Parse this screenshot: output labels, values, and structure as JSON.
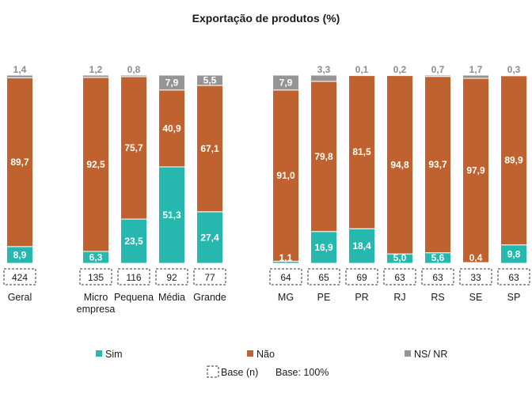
{
  "chart_data": {
    "type": "bar",
    "stacked": true,
    "title": "Exportação de produtos (%)",
    "categories": [
      "Geral",
      "Micro empresa",
      "Pequena",
      "Média",
      "Grande",
      "MG",
      "PE",
      "PR",
      "RJ",
      "RS",
      "SE",
      "SP"
    ],
    "category_lines": [
      [
        "Geral"
      ],
      [
        "Micro",
        "empresa"
      ],
      [
        "Pequena"
      ],
      [
        "Média"
      ],
      [
        "Grande"
      ],
      [
        "MG"
      ],
      [
        "PE"
      ],
      [
        "PR"
      ],
      [
        "RJ"
      ],
      [
        "RS"
      ],
      [
        "SE"
      ],
      [
        "SP"
      ]
    ],
    "series": [
      {
        "name": "Sim",
        "color": "#26b8ae",
        "values": [
          8.9,
          6.3,
          23.5,
          51.3,
          27.4,
          1.1,
          16.9,
          18.4,
          5.0,
          5.6,
          0.4,
          9.8
        ],
        "labels": [
          "8,9",
          "6,3",
          "23,5",
          "51,3",
          "27,4",
          "1,1",
          "16,9",
          "18,4",
          "5,0",
          "5,6",
          "0,4",
          "9,8"
        ]
      },
      {
        "name": "Não",
        "color": "#c0622f",
        "values": [
          89.7,
          92.5,
          75.7,
          40.9,
          67.1,
          91.0,
          79.8,
          81.5,
          94.8,
          93.7,
          97.9,
          89.9
        ],
        "labels": [
          "89,7",
          "92,5",
          "75,7",
          "40,9",
          "67,1",
          "91,0",
          "79,8",
          "81,5",
          "94,8",
          "93,7",
          "97,9",
          "89,9"
        ]
      },
      {
        "name": "NS/ NR",
        "color": "#959595",
        "values": [
          1.4,
          1.2,
          0.8,
          7.9,
          5.5,
          7.9,
          3.3,
          0.1,
          0.2,
          0.7,
          1.7,
          0.3
        ],
        "labels": [
          "1,4",
          "1,2",
          "0,8",
          "7,9",
          "5,5",
          "7,9",
          "3,3",
          "0,1",
          "0,2",
          "0,7",
          "1,7",
          "0,3"
        ]
      }
    ],
    "base_n": [
      "424",
      "135",
      "116",
      "92",
      "77",
      "64",
      "65",
      "69",
      "63",
      "63",
      "33",
      "63"
    ],
    "ylim": [
      0,
      100
    ],
    "grid": false,
    "legend_position": "bottom"
  },
  "footer": {
    "base_label": "Base (n)",
    "base_note": "Base: 100%"
  }
}
